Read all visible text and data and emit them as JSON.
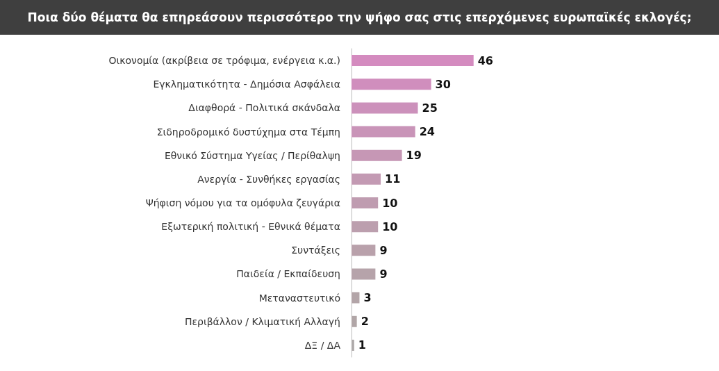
{
  "chart_data": {
    "type": "bar",
    "orientation": "horizontal",
    "title": "Ποια δύο θέματα θα επηρεάσουν περισσότερο την ψήφο σας στις επερχόμενες ευρωπαϊκές εκλογές;",
    "categories": [
      "Οικονομία (ακρίβεια σε τρόφιμα, ενέργεια κ.α.)",
      "Εγκληματικότητα - Δημόσια Ασφάλεια",
      "Διαφθορά - Πολιτικά σκάνδαλα",
      "Σιδηροδρομικό δυστύχημα στα Τέμπη",
      "Εθνικό Σύστημα Υγείας / Περίθαλψη",
      "Ανεργία - Συνθήκες εργασίας",
      "Ψήφιση νόμου για τα ομόφυλα ζευγάρια",
      "Εξωτερική πολιτική - Εθνικά θέματα",
      "Συντάξεις",
      "Παιδεία / Εκπαίδευση",
      "Μεταναστευτικό",
      "Περιβάλλον / Κλιματική Αλλαγή",
      "ΔΞ / ΔΑ"
    ],
    "values": [
      46,
      30,
      25,
      24,
      19,
      11,
      10,
      10,
      9,
      9,
      3,
      2,
      1
    ],
    "colors": [
      "#d48bbf",
      "#d08ebd",
      "#cc91bb",
      "#c994b8",
      "#c697b5",
      "#c39ab3",
      "#bf9cb0",
      "#bc9fae",
      "#b9a1ab",
      "#b6a3aa",
      "#b3a5a8",
      "#b1a6a7",
      "#aeaaaa"
    ],
    "data_labels": true
  }
}
